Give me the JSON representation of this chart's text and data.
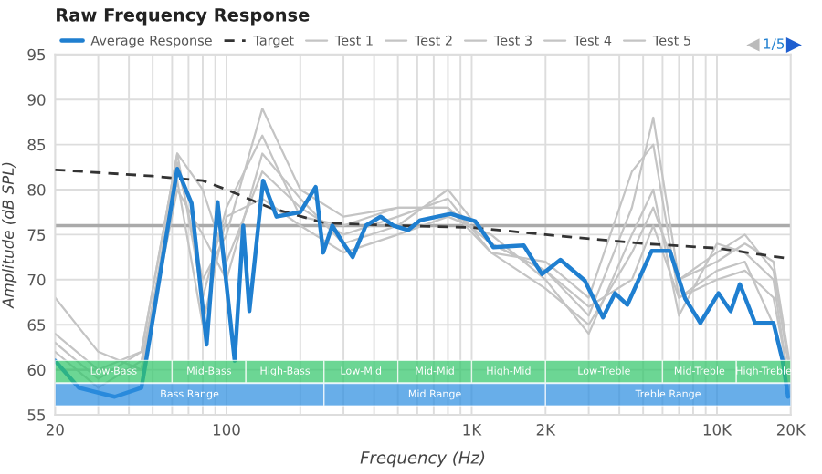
{
  "chart_data": {
    "type": "line",
    "title": "Raw Frequency Response",
    "xlabel": "Frequency (Hz)",
    "ylabel": "Amplitude (dB SPL)",
    "log": "x",
    "xlim": [
      20,
      20000
    ],
    "ylim": [
      55,
      95
    ],
    "xticks": [
      20,
      {
        "value": 30,
        "label": null
      },
      {
        "value": 40,
        "label": null
      },
      {
        "value": 50,
        "label": null
      },
      {
        "value": 60,
        "label": null
      },
      {
        "value": 70,
        "label": null
      },
      {
        "value": 80,
        "label": null
      },
      {
        "value": 90,
        "label": null
      },
      100,
      {
        "value": 200,
        "label": null
      },
      {
        "value": 300,
        "label": null
      },
      {
        "value": 400,
        "label": null
      },
      {
        "value": 500,
        "label": null
      },
      {
        "value": 600,
        "label": null
      },
      {
        "value": 700,
        "label": null
      },
      {
        "value": 800,
        "label": null
      },
      {
        "value": 900,
        "label": null
      },
      {
        "value": 1000,
        "label": "1K"
      },
      {
        "value": 2000,
        "label": "2K"
      },
      {
        "value": 3000,
        "label": null
      },
      {
        "value": 4000,
        "label": null
      },
      {
        "value": 5000,
        "label": null
      },
      {
        "value": 6000,
        "label": null
      },
      {
        "value": 7000,
        "label": null
      },
      {
        "value": 8000,
        "label": null
      },
      {
        "value": 9000,
        "label": null
      },
      {
        "value": 10000,
        "label": "10K"
      },
      {
        "value": 20000,
        "label": "20K"
      }
    ],
    "yticks": [
      55,
      60,
      65,
      70,
      75,
      80,
      85,
      90,
      95
    ],
    "grid": true,
    "legend": "top",
    "line_style": "solid",
    "marker": "none",
    "annotations": [
      "1/5"
    ],
    "ref_lines": [
      {
        "axis": "y",
        "value": 76,
        "color": "#aaaaaa"
      }
    ],
    "bands": [
      {
        "axis": "x",
        "from": 20,
        "to": 60,
        "label": "Low-Bass",
        "color": "#33c66b"
      },
      {
        "axis": "x",
        "from": 60,
        "to": 120,
        "label": "Mid-Bass",
        "color": "#33c66b"
      },
      {
        "axis": "x",
        "from": 120,
        "to": 250,
        "label": "High-Bass",
        "color": "#33c66b"
      },
      {
        "axis": "x",
        "from": 250,
        "to": 500,
        "label": "Low-Mid",
        "color": "#33c66b"
      },
      {
        "axis": "x",
        "from": 500,
        "to": 1000,
        "label": "Mid-Mid",
        "color": "#33c66b"
      },
      {
        "axis": "x",
        "from": 1000,
        "to": 2000,
        "label": "High-Mid",
        "color": "#33c66b"
      },
      {
        "axis": "x",
        "from": 2000,
        "to": 6000,
        "label": "Low-Treble",
        "color": "#33c66b"
      },
      {
        "axis": "x",
        "from": 6000,
        "to": 12000,
        "label": "Mid-Treble",
        "color": "#33c66b"
      },
      {
        "axis": "x",
        "from": 12000,
        "to": 20000,
        "label": "High-Treble",
        "color": "#33c66b"
      },
      {
        "axis": "x",
        "from": 20,
        "to": 250,
        "label": "Bass Range",
        "color": "#2e8fe0"
      },
      {
        "axis": "x",
        "from": 250,
        "to": 2000,
        "label": "Mid Range",
        "color": "#2e8fe0"
      },
      {
        "axis": "x",
        "from": 2000,
        "to": 20000,
        "label": "Treble Range",
        "color": "#2e8fe0"
      }
    ],
    "series": [
      {
        "name": "Test 1",
        "color": "#c4c4c4",
        "x": [
          20,
          30,
          45,
          63,
          80,
          100,
          140,
          200,
          300,
          500,
          800,
          1200,
          2000,
          3000,
          4500,
          5500,
          7000,
          10000,
          13000,
          17000,
          20000
        ],
        "values": [
          68,
          62,
          60,
          83,
          70,
          75,
          89,
          80,
          77,
          78,
          78,
          74,
          71,
          66,
          78,
          88,
          70,
          72,
          74,
          72,
          60
        ]
      },
      {
        "name": "Test 2",
        "color": "#c4c4c4",
        "x": [
          20,
          30,
          45,
          63,
          80,
          100,
          140,
          200,
          300,
          500,
          800,
          1200,
          2000,
          3000,
          4500,
          5500,
          7000,
          10000,
          13000,
          17000,
          20000
        ],
        "values": [
          64,
          60,
          62,
          84,
          80,
          72,
          82,
          78,
          75,
          77,
          79,
          73,
          72,
          68,
          82,
          85,
          68,
          70,
          71,
          68,
          58
        ]
      },
      {
        "name": "Test 3",
        "color": "#c4c4c4",
        "x": [
          20,
          30,
          45,
          63,
          80,
          100,
          140,
          200,
          300,
          500,
          800,
          1200,
          2000,
          3000,
          4500,
          5500,
          7000,
          10000,
          13000,
          17000,
          20000
        ],
        "values": [
          62,
          58,
          61,
          81,
          65,
          77,
          79,
          76,
          73,
          75,
          77,
          75,
          70,
          64,
          75,
          80,
          66,
          74,
          73,
          70,
          57
        ]
      },
      {
        "name": "Test 4",
        "color": "#c4c4c4",
        "x": [
          20,
          30,
          45,
          63,
          80,
          100,
          140,
          200,
          300,
          500,
          800,
          1200,
          2000,
          3000,
          4500,
          5500,
          7000,
          10000,
          13000,
          17000,
          20000
        ],
        "values": [
          60,
          null,
          60,
          80,
          75,
          70,
          84,
          79,
          74,
          76,
          80,
          74,
          71,
          67,
          70,
          76,
          68,
          71,
          72,
          65,
          58
        ]
      },
      {
        "name": "Test 5",
        "color": "#c4c4c4",
        "x": [
          20,
          30,
          45,
          63,
          80,
          100,
          140,
          200,
          300,
          500,
          800,
          1200,
          2000,
          3000,
          4500,
          5500,
          7000,
          10000,
          13000,
          17000,
          20000
        ],
        "values": [
          63,
          59,
          62,
          84,
          68,
          78,
          86,
          77,
          76,
          78,
          78,
          73,
          69,
          65,
          73,
          78,
          70,
          73,
          75,
          71,
          59
        ]
      },
      {
        "name": "Target",
        "color": "#333333",
        "line_style": "dashed",
        "x": [
          20,
          50,
          80,
          100,
          150,
          250,
          500,
          1000,
          2000,
          5000,
          10000,
          20000
        ],
        "values": [
          82.2,
          81.5,
          81,
          80,
          78,
          76.3,
          76,
          75.8,
          75,
          74,
          73.5,
          72.3
        ]
      },
      {
        "name": "Average Response",
        "color": "#1f7fd0",
        "x": [
          20,
          25,
          35,
          45,
          47,
          63,
          72,
          83,
          92,
          108,
          117,
          124,
          141,
          160,
          200,
          231,
          248,
          270,
          300,
          327,
          370,
          425,
          480,
          550,
          617,
          820,
          1033,
          1225,
          1630,
          1935,
          2300,
          2890,
          3430,
          3840,
          4310,
          5420,
          6430,
          7420,
          8560,
          10150,
          11380,
          12400,
          14300,
          17000,
          18500,
          19500
        ],
        "values": [
          61,
          58,
          57,
          58,
          61,
          82.3,
          78.5,
          62.8,
          78.6,
          61,
          76,
          66.5,
          81,
          77,
          77.5,
          80.3,
          73,
          76,
          74,
          72.5,
          76,
          77,
          76,
          75.5,
          76.6,
          77.3,
          76.5,
          73.6,
          73.8,
          70.6,
          72.2,
          69.9,
          65.8,
          68.5,
          67.2,
          73.2,
          73.2,
          67.9,
          65.2,
          68.5,
          66.5,
          69.5,
          65.2,
          65.2,
          61.1,
          57
        ]
      }
    ]
  }
}
